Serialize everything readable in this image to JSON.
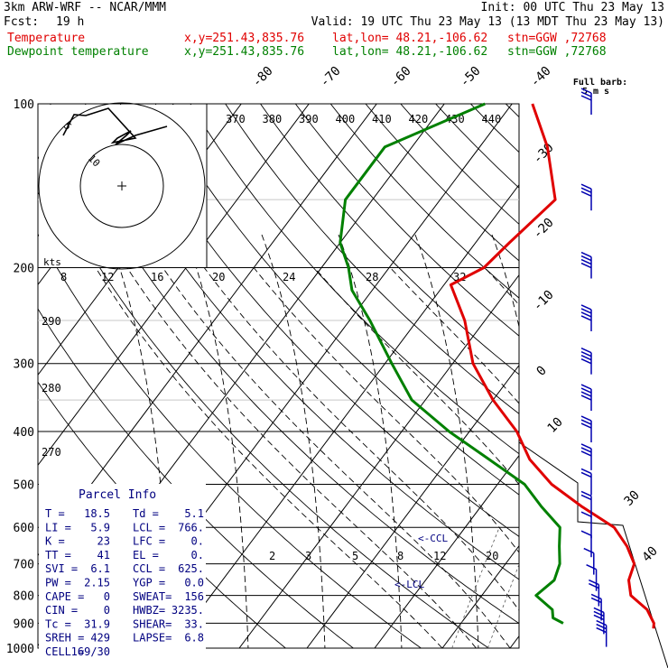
{
  "header": {
    "model": "3km ARW-WRF -- NCAR/MMM",
    "init": "Init: 00 UTC Thu 23 May 13",
    "fcst_label": "Fcst:",
    "fcst_value": "19 h",
    "valid": "Valid: 19 UTC Thu 23 May 13 (13 MDT Thu 23 May 13)",
    "fields": [
      {
        "name": "Temperature",
        "xy": "x,y=251.43,835.76",
        "latlon": "lat,lon= 48.21,-106.62",
        "stn": "stn=GGW ,72768",
        "color": "#e00000"
      },
      {
        "name": "Dewpoint temperature",
        "xy": "x,y=251.43,835.76",
        "latlon": "lat,lon= 48.21,-106.62",
        "stn": "stn=GGW ,72768",
        "color": "#008000"
      }
    ]
  },
  "barb_legend": {
    "line1": "Full barb:",
    "line2": "5 m s"
  },
  "hodograph": {
    "units": "kts",
    "rings": [
      "5",
      "10"
    ],
    "curve_kts": [
      [
        0,
        0
      ],
      [
        3,
        5
      ],
      [
        6,
        7
      ],
      [
        10,
        8
      ],
      [
        12,
        10
      ],
      [
        10,
        12
      ],
      [
        8,
        14
      ],
      [
        5,
        15
      ],
      [
        3,
        16
      ]
    ]
  },
  "parcel_info": {
    "title": "Parcel Info",
    "rows": [
      [
        "T  =",
        "18.5",
        "Td =",
        "5.1"
      ],
      [
        "LI =",
        "5.9",
        "LCL =",
        "766."
      ],
      [
        "K  =",
        "23",
        "LFC =",
        "0."
      ],
      [
        "TT =",
        "41",
        "EL =",
        "0."
      ],
      [
        "SVI =",
        "6.1",
        "CCL =",
        "625."
      ],
      [
        "PW =",
        "2.15",
        "YGP =",
        "0.0"
      ],
      [
        "CAPE =",
        "0",
        "SWEAT=",
        "156"
      ],
      [
        "CIN =",
        "0",
        "HWBZ=",
        "3235."
      ],
      [
        "Tc =",
        "31.9",
        "SHEAR=",
        "33."
      ],
      [
        "SREH =",
        "429",
        "LAPSE=",
        "6.8"
      ],
      [
        "CELL =",
        "169/30",
        "",
        ""
      ]
    ]
  },
  "chart_data": {
    "type": "skew-t",
    "y_axis": {
      "label": "pressure (hPa)",
      "ticks": [
        "100",
        "200",
        "300",
        "400",
        "500",
        "600",
        "700",
        "800",
        "900",
        "1000"
      ]
    },
    "isotherm_labels": [
      "-80",
      "-70",
      "-60",
      "-50",
      "-40",
      "-30",
      "-20",
      "-10",
      "0",
      "10",
      "30",
      "40"
    ],
    "theta_labels_top": [
      "370",
      "380",
      "390",
      "400",
      "410",
      "420",
      "430",
      "440"
    ],
    "theta_labels_left": [
      "290",
      "280",
      "270"
    ],
    "mixing_ratio_labels": [
      "2",
      "3",
      "5",
      "8",
      "12",
      "20"
    ],
    "theta_e_labels_upper": [
      "8",
      "12",
      "16",
      "20",
      "24",
      "28",
      "32"
    ],
    "annotations": [
      "<-CCL",
      "<-LCL"
    ],
    "series": [
      {
        "name": "Temperature",
        "color": "#e00000",
        "points": [
          [
            100,
            -57
          ],
          [
            120,
            -50
          ],
          [
            150,
            -43
          ],
          [
            180,
            -45
          ],
          [
            200,
            -46
          ],
          [
            215,
            -49
          ],
          [
            250,
            -43
          ],
          [
            300,
            -37
          ],
          [
            350,
            -30
          ],
          [
            400,
            -23
          ],
          [
            450,
            -18
          ],
          [
            500,
            -12
          ],
          [
            550,
            -5
          ],
          [
            600,
            2
          ],
          [
            650,
            6
          ],
          [
            700,
            9
          ],
          [
            750,
            10
          ],
          [
            800,
            12
          ],
          [
            850,
            16
          ],
          [
            900,
            18.5
          ],
          [
            920,
            19
          ]
        ]
      },
      {
        "name": "Dewpoint temperature",
        "color": "#008000",
        "points": [
          [
            100,
            -64
          ],
          [
            120,
            -74
          ],
          [
            150,
            -74
          ],
          [
            180,
            -70
          ],
          [
            200,
            -66
          ],
          [
            220,
            -63
          ],
          [
            250,
            -57
          ],
          [
            300,
            -49
          ],
          [
            350,
            -42
          ],
          [
            400,
            -33
          ],
          [
            450,
            -24
          ],
          [
            500,
            -16
          ],
          [
            550,
            -11
          ],
          [
            600,
            -6
          ],
          [
            650,
            -4
          ],
          [
            700,
            -2
          ],
          [
            750,
            -1
          ],
          [
            800,
            -2
          ],
          [
            850,
            2
          ],
          [
            880,
            3
          ],
          [
            900,
            5.1
          ]
        ]
      }
    ],
    "wind_barbs": [
      {
        "p": 100,
        "spd": 25
      },
      {
        "p": 150,
        "spd": 30
      },
      {
        "p": 200,
        "spd": 35
      },
      {
        "p": 250,
        "spd": 40
      },
      {
        "p": 300,
        "spd": 40
      },
      {
        "p": 350,
        "spd": 35
      },
      {
        "p": 400,
        "spd": 30
      },
      {
        "p": 450,
        "spd": 25
      },
      {
        "p": 500,
        "spd": 20
      },
      {
        "p": 550,
        "spd": 15
      },
      {
        "p": 600,
        "spd": 10
      },
      {
        "p": 650,
        "spd": 5
      },
      {
        "p": 700,
        "spd": 8
      },
      {
        "p": 750,
        "spd": 10
      },
      {
        "p": 800,
        "spd": 15
      },
      {
        "p": 850,
        "spd": 20
      },
      {
        "p": 900,
        "spd": 25
      },
      {
        "p": 950,
        "spd": 30
      }
    ]
  }
}
